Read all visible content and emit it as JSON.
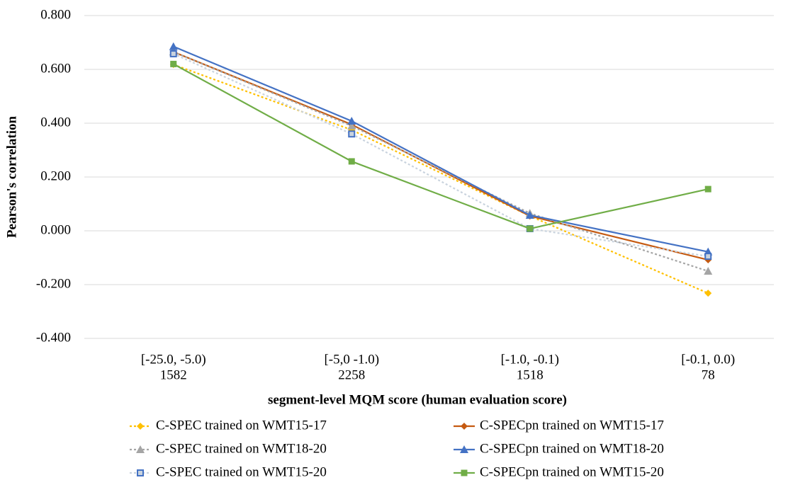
{
  "chart_data": {
    "type": "line",
    "x_label": "segment-level MQM score (human evaluation score)",
    "y_label": "Pearson's correlation",
    "categories": [
      [
        "[-25.0, -5.0)",
        "1582"
      ],
      [
        "[-5,0 -1.0)",
        "2258"
      ],
      [
        "[-1.0, -0.1)",
        "1518"
      ],
      [
        "[-0.1, 0.0)",
        "78"
      ]
    ],
    "ylim": [
      -0.4,
      0.8
    ],
    "yticks": [
      {
        "value": -0.4,
        "label": "-0.400"
      },
      {
        "value": -0.2,
        "label": "-0.200"
      },
      {
        "value": 0,
        "label": "0.000"
      },
      {
        "value": 0.2,
        "label": "0.200"
      },
      {
        "value": 0.4,
        "label": "0.400"
      },
      {
        "value": 0.6,
        "label": "0.600"
      },
      {
        "value": 0.8,
        "label": "0.800"
      }
    ],
    "grid": true,
    "series": [
      {
        "name": "C-SPEC trained on WMT15-17",
        "color": "#ffc000",
        "dashed": true,
        "marker": "diamond",
        "values": [
          0.618,
          0.375,
          0.055,
          -0.232
        ]
      },
      {
        "name": "C-SPECpn trained on WMT15-17",
        "color": "#c55a11",
        "dashed": false,
        "marker": "diamond",
        "values": [
          0.665,
          0.395,
          0.055,
          -0.108
        ]
      },
      {
        "name": "C-SPEC trained on WMT18-20",
        "color": "#a5a5a5",
        "dashed": true,
        "marker": "triangle",
        "values": [
          0.665,
          0.39,
          0.065,
          -0.15
        ]
      },
      {
        "name": "C-SPECpn trained on WMT18-20",
        "color": "#4472c4",
        "dashed": false,
        "marker": "triangle",
        "values": [
          0.685,
          0.408,
          0.058,
          -0.078
        ]
      },
      {
        "name": "C-SPEC trained on WMT15-20",
        "color": "#c9d3de",
        "dashed": true,
        "marker": "open-square",
        "values": [
          0.658,
          0.36,
          0.008,
          -0.095
        ]
      },
      {
        "name": "C-SPECpn trained on WMT15-20",
        "color": "#70ad47",
        "dashed": false,
        "marker": "square",
        "values": [
          0.62,
          0.258,
          0.008,
          0.155
        ]
      }
    ]
  }
}
